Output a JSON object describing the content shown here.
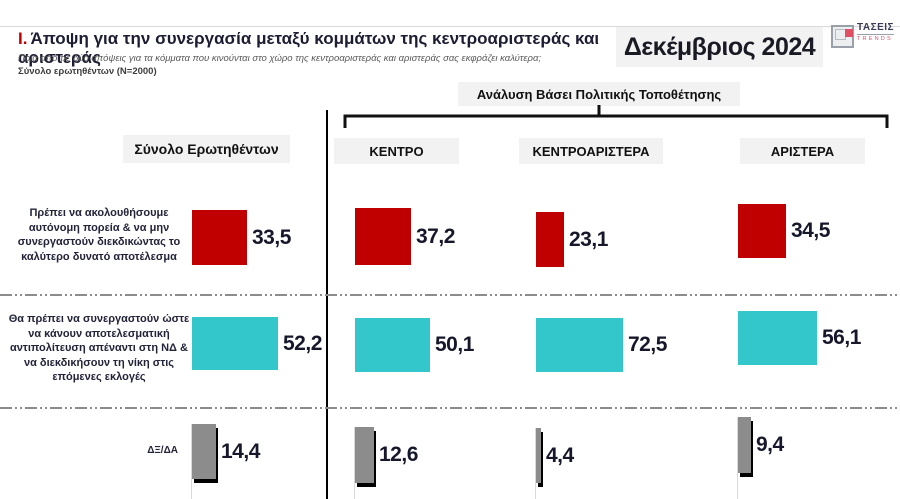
{
  "header": {
    "title_prefix": "I.",
    "title": "Άποψη για την συνεργασία μεταξύ κομμάτων της κεντροαριστεράς και αριστεράς",
    "subtitle": "Ποια από τις δύο απόψεις για τα κόμματα που κινούνται στο χώρο της κεντροαριστεράς και αριστεράς σας εκφράζει καλύτερα;",
    "sample_note": "Σύνολο ερωτηθέντων (N=2000)",
    "date_badge": "Δεκέμβριος 2024",
    "logo_text": "ΤΑΣΕΙΣ",
    "logo_subtext": "TRENDS"
  },
  "analysis_header": "Ανάλυση Βάσει Πολιτικής Τοποθέτησης",
  "colors": {
    "bar_red": "#c00000",
    "bar_teal": "#33c6ca",
    "bar_gray": "#8c8c8c",
    "logo_red": "#e04f63",
    "header_box_gray": "#f2f2f2"
  },
  "chart_data": {
    "type": "bar",
    "orientation": "horizontal",
    "unit": "%",
    "columns": [
      "Σύνολο Ερωτηθέντων",
      "ΚΕΝΤΡΟ",
      "ΚΕΝΤΡΟΑΡΙΣΤΕΡΑ",
      "ΑΡΙΣΤΕΡΑ"
    ],
    "rows": [
      {
        "label": "Πρέπει να ακολουθήσουμε αυτόνομη πορεία & να μην συνεργαστούν διεκδικώντας το καλύτερο δυνατό αποτέλεσμα",
        "color": "#c00000",
        "values": [
          33.5,
          37.2,
          23.1,
          34.5
        ],
        "display": [
          "33,5",
          "37,2",
          "23,1",
          "34,5"
        ]
      },
      {
        "label": "Θα πρέπει να συνεργαστούν ώστε να κάνουν αποτελεσματική αντιπολίτευση απέναντι στη ΝΔ & να διεκδικήσουν τη νίκη στις επόμενες εκλογές",
        "color": "#33c6ca",
        "values": [
          52.2,
          50.1,
          72.5,
          56.1
        ],
        "display": [
          "52,2",
          "50,1",
          "72,5",
          "56,1"
        ]
      },
      {
        "label": "ΔΞ/ΔΑ",
        "color": "#8c8c8c",
        "values": [
          14.4,
          12.6,
          4.4,
          9.4
        ],
        "display": [
          "14,4",
          "12,6",
          "4,4",
          "9,4"
        ]
      }
    ]
  }
}
